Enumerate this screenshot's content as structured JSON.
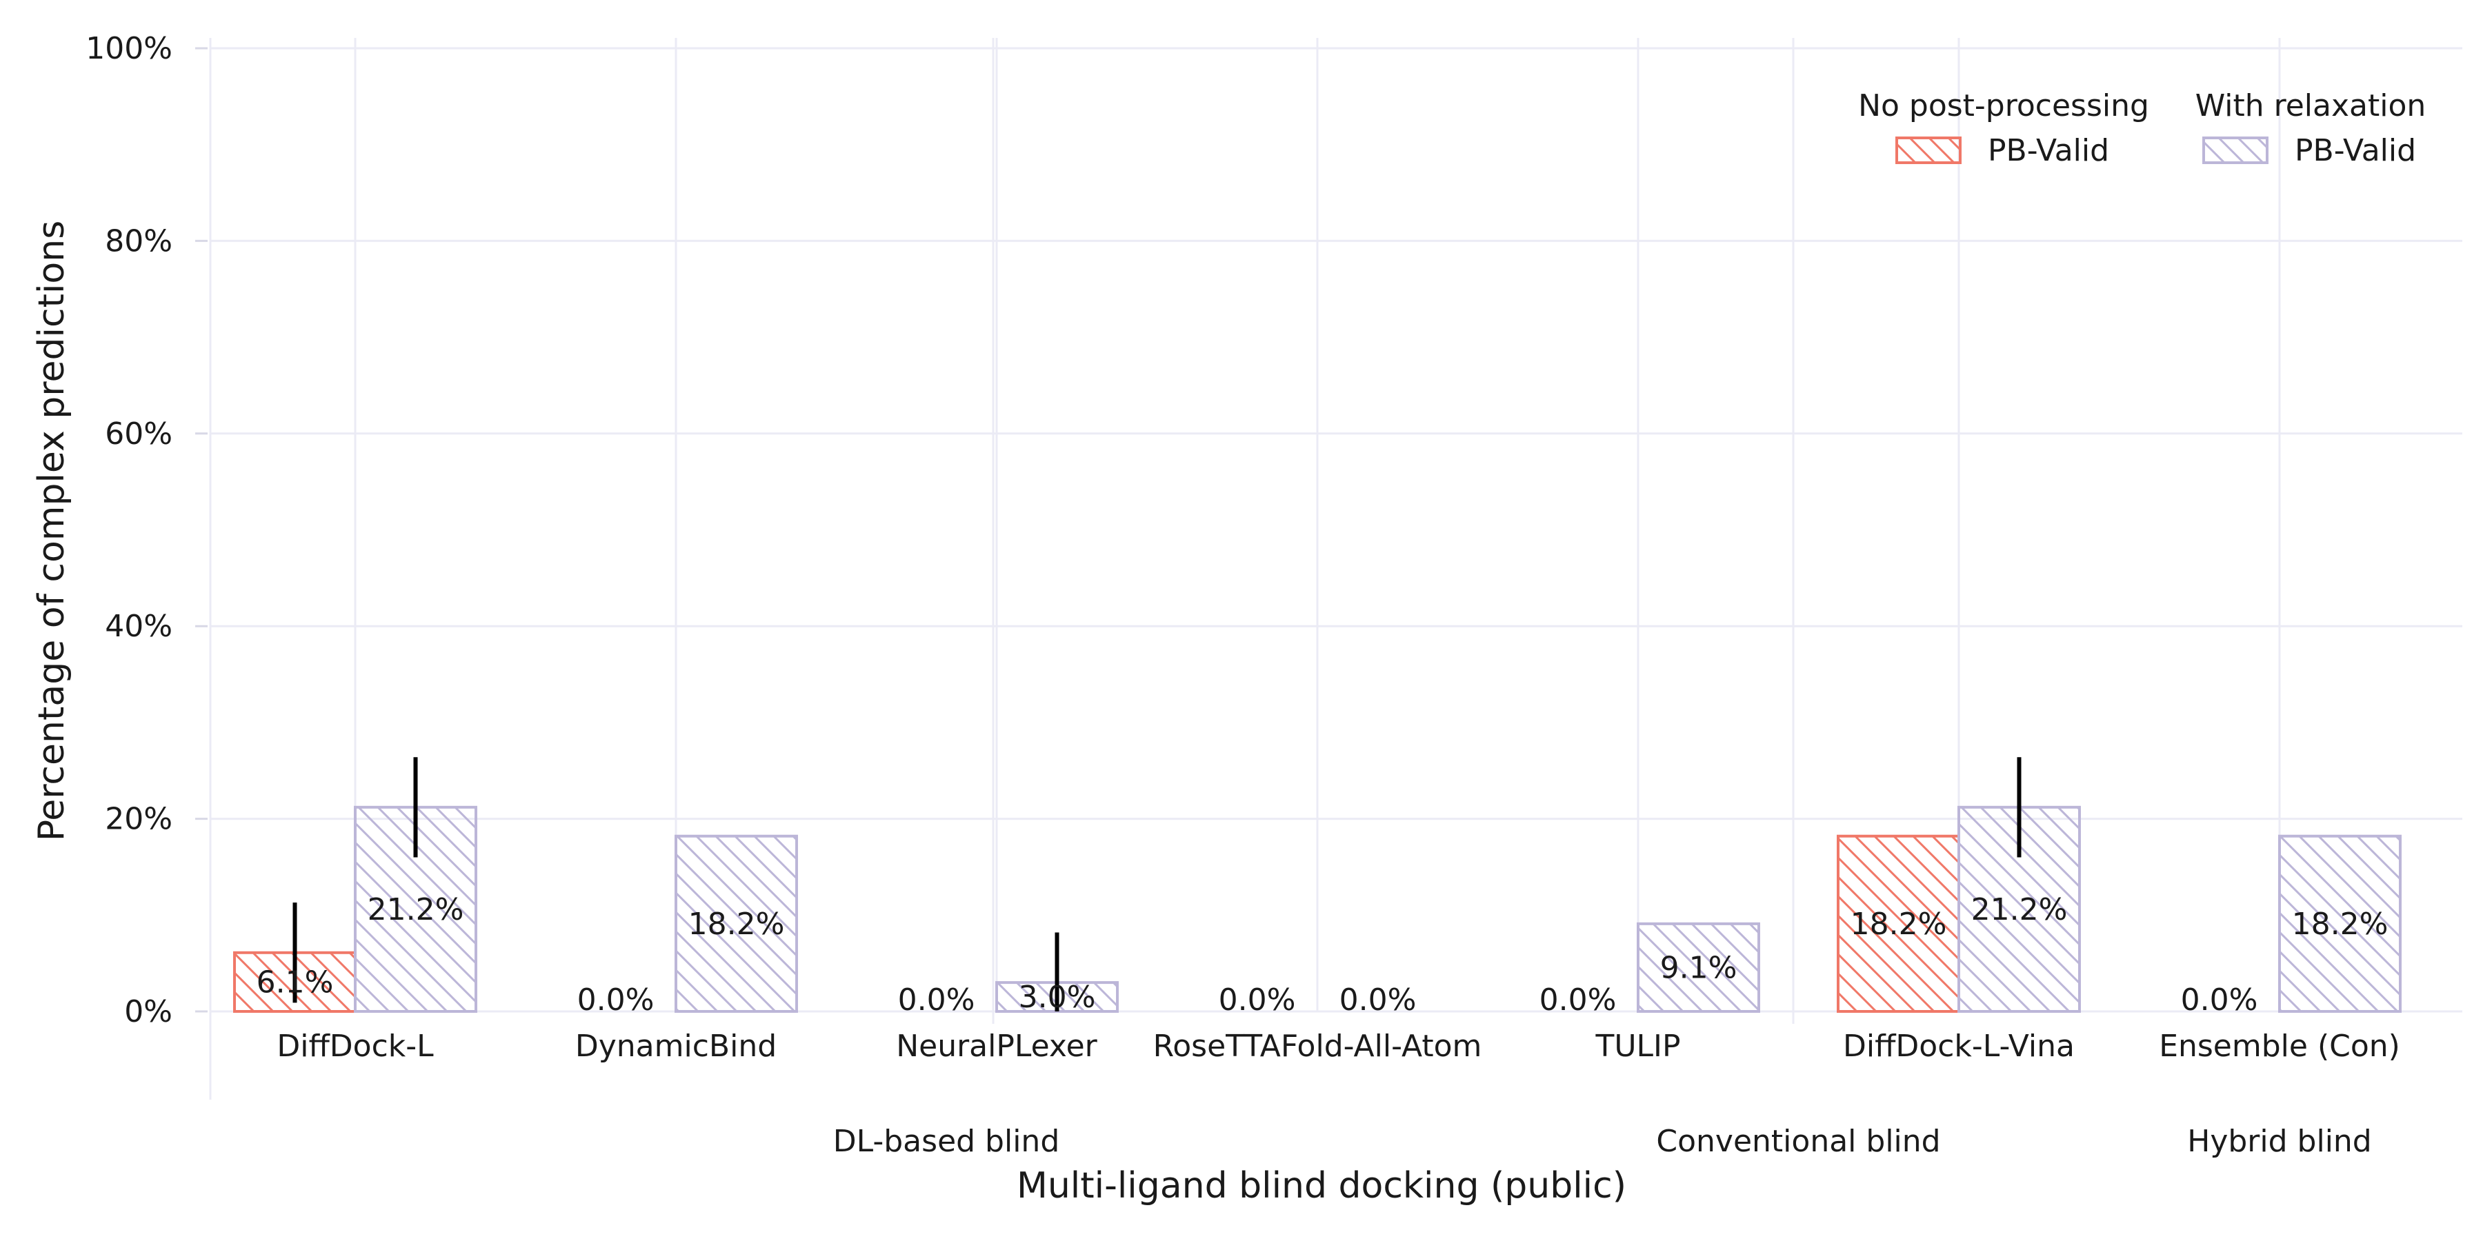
{
  "chart_data": {
    "type": "bar",
    "xlabel": "Multi-ligand blind docking (public)",
    "ylabel": "Percentage of complex predictions",
    "ylim": [
      0,
      100
    ],
    "yticks": [
      "0%",
      "20%",
      "40%",
      "60%",
      "80%",
      "100%"
    ],
    "grid": true,
    "legend_placement": "top-right",
    "categories": [
      "DiffDock-L",
      "DynamicBind",
      "NeuralPLexer",
      "RoseTTAFold-All-Atom",
      "TULIP",
      "DiffDock-L-Vina",
      "Ensemble (Con)"
    ],
    "groups": [
      {
        "label": "DL-based blind",
        "categories": [
          "DiffDock-L",
          "DynamicBind",
          "NeuralPLexer",
          "RoseTTAFold-All-Atom"
        ]
      },
      {
        "label": "Conventional blind",
        "categories": [
          "TULIP",
          "DiffDock-L-Vina"
        ]
      },
      {
        "label": "Hybrid blind",
        "categories": [
          "Ensemble (Con)"
        ]
      }
    ],
    "series": [
      {
        "legend_title": "No post-processing",
        "name": "PB-Valid",
        "color": "#f07868",
        "values": [
          6.1,
          0.0,
          0.0,
          0.0,
          0.0,
          18.2,
          0.0
        ],
        "labels": [
          "6.1%",
          "0.0%",
          "0.0%",
          "0.0%",
          "0.0%",
          "18.2%",
          "0.0%"
        ],
        "error_low": [
          0.9,
          null,
          null,
          null,
          null,
          null,
          null
        ],
        "error_high": [
          11.3,
          null,
          null,
          null,
          null,
          null,
          null
        ]
      },
      {
        "legend_title": "With relaxation",
        "name": "PB-Valid",
        "color": "#bcb6d8",
        "values": [
          21.2,
          18.2,
          3.0,
          0.0,
          9.1,
          21.2,
          18.2
        ],
        "labels": [
          "21.2%",
          "18.2%",
          "3.0%",
          "0.0%",
          "9.1%",
          "21.2%",
          "18.2%"
        ],
        "error_low": [
          16.0,
          null,
          0.0,
          null,
          null,
          16.0,
          null
        ],
        "error_high": [
          26.4,
          null,
          8.2,
          null,
          null,
          26.4,
          null
        ]
      }
    ]
  }
}
